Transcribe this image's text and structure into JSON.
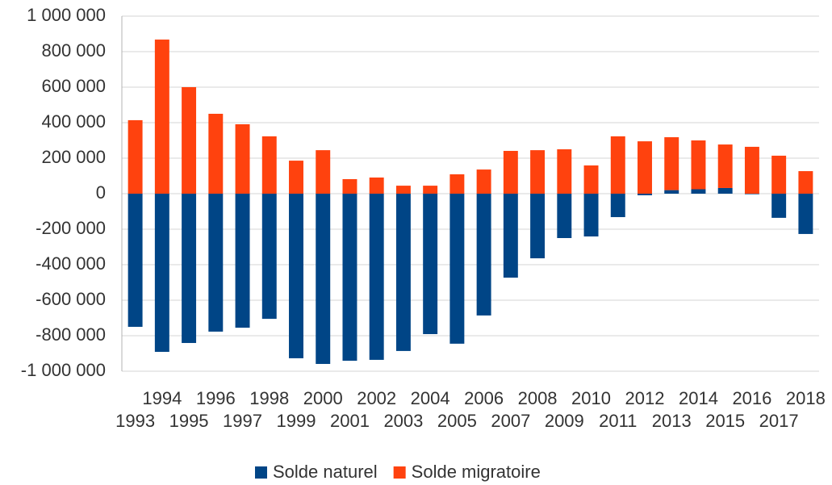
{
  "chart_data": {
    "type": "bar",
    "stacked": true,
    "categories": [
      "1993",
      "1994",
      "1995",
      "1996",
      "1997",
      "1998",
      "1999",
      "2000",
      "2001",
      "2002",
      "2003",
      "2004",
      "2005",
      "2006",
      "2007",
      "2008",
      "2009",
      "2010",
      "2011",
      "2012",
      "2013",
      "2014",
      "2015",
      "2016",
      "2017",
      "2018"
    ],
    "series": [
      {
        "name": "Solde naturel",
        "color": "#004586",
        "values": [
          -750000,
          -891000,
          -841000,
          -777000,
          -755000,
          -705000,
          -927000,
          -959000,
          -941000,
          -936000,
          -886000,
          -791000,
          -845000,
          -686000,
          -473000,
          -364000,
          -250000,
          -241000,
          -132000,
          -9000,
          20000,
          25000,
          32000,
          -3000,
          -136000,
          -227000
        ]
      },
      {
        "name": "Solde migratoire",
        "color": "#ff420e",
        "values": [
          414000,
          868000,
          600000,
          450000,
          391000,
          323000,
          186000,
          245000,
          82000,
          91000,
          45000,
          45000,
          109000,
          136000,
          241000,
          245000,
          250000,
          159000,
          323000,
          295000,
          298000,
          275000,
          245000,
          264000,
          214000,
          127000
        ]
      }
    ],
    "ylim": [
      -1000000,
      1000000
    ],
    "yticks": [
      {
        "value": -1000000,
        "label": "-1 000 000"
      },
      {
        "value": -800000,
        "label": "-800 000"
      },
      {
        "value": -600000,
        "label": "-600 000"
      },
      {
        "value": -400000,
        "label": "-400 000"
      },
      {
        "value": -200000,
        "label": "-200 000"
      },
      0,
      {
        "value": 200000,
        "label": "200 000"
      },
      {
        "value": 400000,
        "label": "400 000"
      },
      {
        "value": 600000,
        "label": "600 000"
      },
      {
        "value": 800000,
        "label": "800 000"
      },
      {
        "value": 1000000,
        "label": "1 000 000"
      }
    ],
    "grid": true,
    "legend": "bottom"
  }
}
